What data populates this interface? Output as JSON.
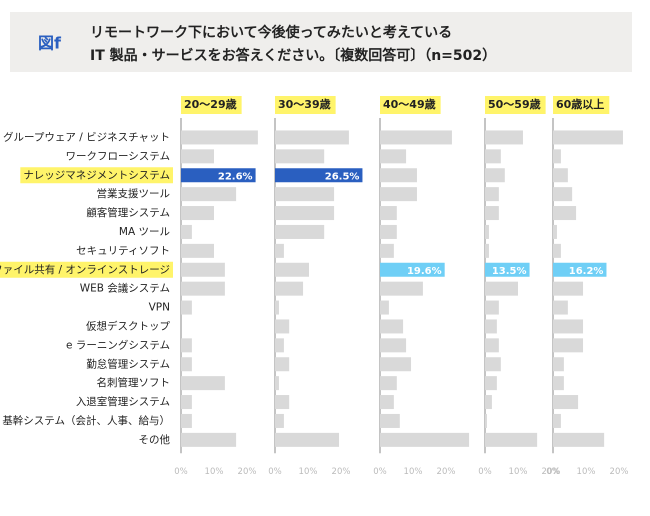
{
  "header": {
    "badge": "図f",
    "title_line1": "リモートワーク下において今後使ってみたいと考えている",
    "title_line2": "IT 製品・サービスをお答えください。〔複数回答可〕（n=502）"
  },
  "chart_data": {
    "type": "bar",
    "orientation": "horizontal",
    "categories": [
      "グループウェア / ビジネスチャット",
      "ワークフローシステム",
      "ナレッジマネジメントシステム",
      "営業支援ツール",
      "顧客管理システム",
      "MA ツール",
      "セキュリティソフト",
      "ファイル共有 / オンラインストレージ",
      "WEB 会議システム",
      "VPN",
      "仮想デスクトップ",
      "e ラーニングシステム",
      "勤怠管理システム",
      "名刺管理ソフト",
      "入退室管理システム",
      "基幹システム（会計、人事、給与）",
      "その他"
    ],
    "highlight_categories": [
      2,
      7
    ],
    "xlim": [
      0,
      30
    ],
    "xticks": [
      {
        "value": 0,
        "label": "0%"
      },
      {
        "value": 10,
        "label": "10%"
      },
      {
        "value": 20,
        "label": "20%"
      }
    ],
    "series": [
      {
        "name": "20〜29歳",
        "color": "#d9d9d9",
        "highlight": {
          "index": 2,
          "color": "#2a5fc0"
        },
        "values": [
          23.3,
          10,
          22.6,
          16.7,
          10,
          3.3,
          10,
          13.3,
          13.3,
          3.3,
          0,
          3.3,
          3.3,
          13.3,
          3.3,
          3.3,
          16.7
        ],
        "value_labels": [
          null,
          null,
          "22.6%",
          null,
          null,
          null,
          null,
          null,
          null,
          null,
          null,
          null,
          null,
          null,
          null,
          null,
          null
        ]
      },
      {
        "name": "30〜39歳",
        "color": "#d9d9d9",
        "highlight": {
          "index": 2,
          "color": "#2a5fc0"
        },
        "values": [
          22.4,
          14.9,
          26.5,
          17.9,
          17.9,
          14.9,
          2.7,
          10.3,
          8.5,
          1.2,
          4.3,
          2.7,
          4.3,
          1.2,
          4.3,
          2.7,
          19.4
        ],
        "value_labels": [
          null,
          null,
          "26.5%",
          null,
          null,
          null,
          null,
          null,
          null,
          null,
          null,
          null,
          null,
          null,
          null,
          null,
          null
        ]
      },
      {
        "name": "40〜49歳",
        "color": "#d9d9d9",
        "highlight": {
          "index": 7,
          "color": "#6fcff6"
        },
        "values": [
          21.8,
          7.9,
          11.2,
          11.2,
          5.1,
          5.1,
          4.2,
          19.6,
          13,
          2.7,
          7,
          7.9,
          9.4,
          5.1,
          4.2,
          6,
          27
        ],
        "value_labels": [
          null,
          null,
          null,
          null,
          null,
          null,
          null,
          "19.6%",
          null,
          null,
          null,
          null,
          null,
          null,
          null,
          null,
          null
        ]
      },
      {
        "name": "50〜59歳",
        "color": "#d9d9d9",
        "highlight": {
          "index": 7,
          "color": "#6fcff6"
        },
        "values": [
          11.5,
          4.8,
          6,
          4.2,
          4.2,
          1.2,
          1.2,
          13.5,
          10,
          4.2,
          3.6,
          4.2,
          4.8,
          3.6,
          2.1,
          0.6,
          15.8
        ],
        "value_labels": [
          null,
          null,
          null,
          null,
          null,
          null,
          null,
          "13.5%",
          null,
          null,
          null,
          null,
          null,
          null,
          null,
          null,
          null
        ]
      },
      {
        "name": "60歳以上",
        "color": "#d9d9d9",
        "highlight": {
          "index": 7,
          "color": "#6fcff6"
        },
        "values": [
          21.2,
          2.4,
          4.5,
          5.8,
          7,
          1.2,
          2.4,
          16.2,
          9.1,
          4.5,
          9.1,
          9.1,
          3.3,
          3.3,
          7.6,
          2.4,
          15.5
        ],
        "value_labels": [
          null,
          null,
          null,
          null,
          null,
          null,
          null,
          "16.2%",
          null,
          null,
          null,
          null,
          null,
          null,
          null,
          null,
          null
        ]
      }
    ]
  }
}
